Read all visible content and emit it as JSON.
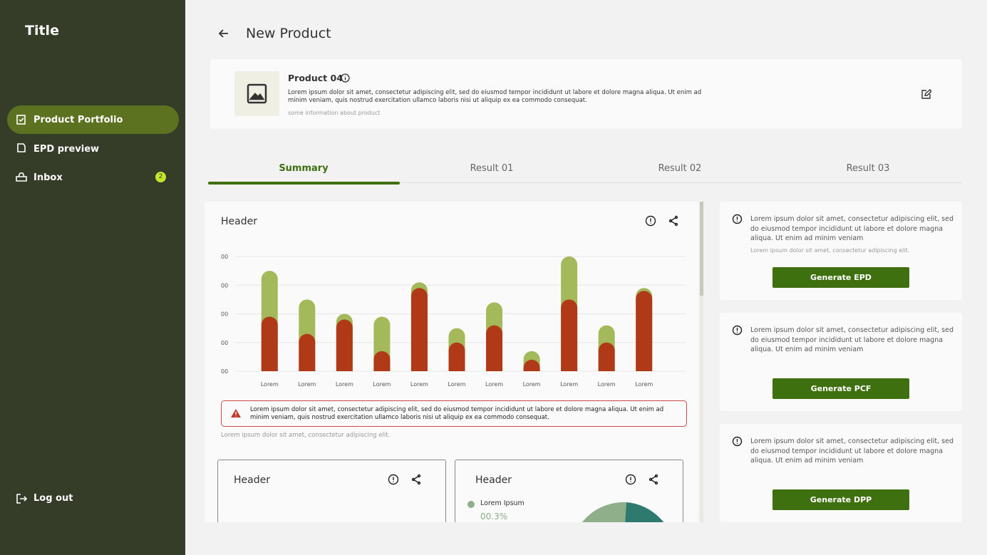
{
  "sidebar": {
    "title": "Title",
    "nav": [
      "Product Portfolio",
      "EPD preview",
      "Inbox"
    ],
    "badge": "2",
    "logout": "Log out"
  },
  "page": {
    "title": "New Product"
  },
  "product": {
    "name": "Product 04",
    "description": "Lorem ipsum dolor sit amet, consectetur adipiscing elit, sed do eiusmod tempor incididunt ut labore et dolore magna aliqua. Ut enim ad minim veniam, quis nostrud exercitation ullamco laboris nisi ut aliquip ex ea commodo consequat.",
    "info": "some information about product"
  },
  "tabs": [
    "Summary",
    "Result 01",
    "Result 02",
    "Result 03"
  ],
  "main_card": {
    "header": "Header",
    "alert": "Lorem ipsum dolor sit amet, consectetur adipiscing elit, sed do eiusmod tempor incididunt ut labore et dolore magna aliqua. Ut enim ad minim veniam, quis nostrud exercitation ullamco laboris nisi ut aliquip ex ea commodo consequat.",
    "note": "Lorem ipsum dolor sit amet, consectetur adipiscing elit."
  },
  "chart_data": {
    "type": "bar",
    "categories": [
      "Lorem",
      "Lorem",
      "Lorem",
      "Lorem",
      "Lorem",
      "Lorem",
      "Lorem",
      "Lorem",
      "Lorem",
      "Lorem",
      "Lorem"
    ],
    "series": [
      {
        "color": "#a3b95a",
        "values": [
          3.5,
          2.5,
          2.0,
          1.9,
          3.1,
          1.5,
          2.4,
          0.7,
          4.0,
          1.6,
          2.9
        ]
      },
      {
        "color": "#b03a17",
        "values": [
          1.9,
          1.3,
          1.8,
          0.7,
          2.9,
          1.0,
          1.6,
          0.4,
          2.5,
          1.0,
          2.8
        ]
      }
    ],
    "ylim": [
      0,
      4
    ],
    "yticks": [
      {
        "value": 0,
        "label": "00"
      },
      {
        "value": 1,
        "label": "00"
      },
      {
        "value": 2,
        "label": "00"
      },
      {
        "value": 3,
        "label": "00"
      },
      {
        "value": 4,
        "label": "00"
      }
    ],
    "grid": true
  },
  "small_cards": [
    {
      "header": "Header"
    },
    {
      "header": "Header",
      "legend_label": "Lorem Ipsum",
      "legend_value": "00.3%"
    }
  ],
  "side_cards": [
    {
      "text": "Lorem ipsum dolor sit amet, consectetur adipiscing elit, sed do eiusmod tempor incididunt ut labore et dolore magna aliqua. Ut enim ad minim veniam",
      "note": "Lorem ipsum dolor sit amet, consectetur adipiscing elit.",
      "button": "Generate EPD"
    },
    {
      "text": "Lorem ipsum dolor sit amet, consectetur adipiscing elit, sed do eiusmod tempor incididunt ut labore et dolore magna aliqua. Ut enim ad minim veniam",
      "button": "Generate PCF"
    },
    {
      "text": "Lorem ipsum dolor sit amet, consectetur adipiscing elit, sed do eiusmod tempor incididunt ut labore et dolore magna aliqua. Ut enim ad minim veniam",
      "button": "Generate DPP"
    }
  ]
}
